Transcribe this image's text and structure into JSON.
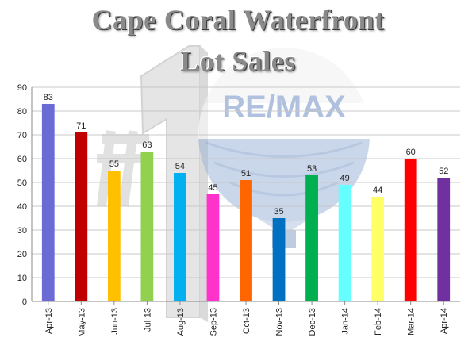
{
  "title_line1": "Cape Coral Waterfront",
  "title_line2": "Lot Sales",
  "logo": {
    "text": "RE/MAX",
    "depicts": "hot-air-balloon-logo",
    "badge_text": "#1"
  },
  "chart_data": {
    "type": "bar",
    "title": "Cape Coral Waterfront Lot Sales",
    "xlabel": "",
    "ylabel": "",
    "categories": [
      "Apr-13",
      "May-13",
      "Jun-13",
      "Jul-13",
      "Aug-13",
      "Sep-13",
      "Oct-13",
      "Nov-13",
      "Dec-13",
      "Jan-14",
      "Feb-14",
      "Mar-14",
      "Apr-14"
    ],
    "values": [
      83,
      71,
      55,
      63,
      54,
      45,
      51,
      35,
      53,
      49,
      44,
      60,
      52
    ],
    "colors": [
      "#6b6bd6",
      "#c00000",
      "#ffc000",
      "#92d050",
      "#00b0f0",
      "#ff33cc",
      "#ff6600",
      "#0070c0",
      "#00b050",
      "#66ffff",
      "#ffff66",
      "#ff0000",
      "#7030a0"
    ],
    "ylim": [
      0,
      90
    ],
    "yticks": [
      0,
      10,
      20,
      30,
      40,
      50,
      60,
      70,
      80,
      90
    ],
    "grid": true,
    "data_labels": true,
    "legend": "none"
  }
}
